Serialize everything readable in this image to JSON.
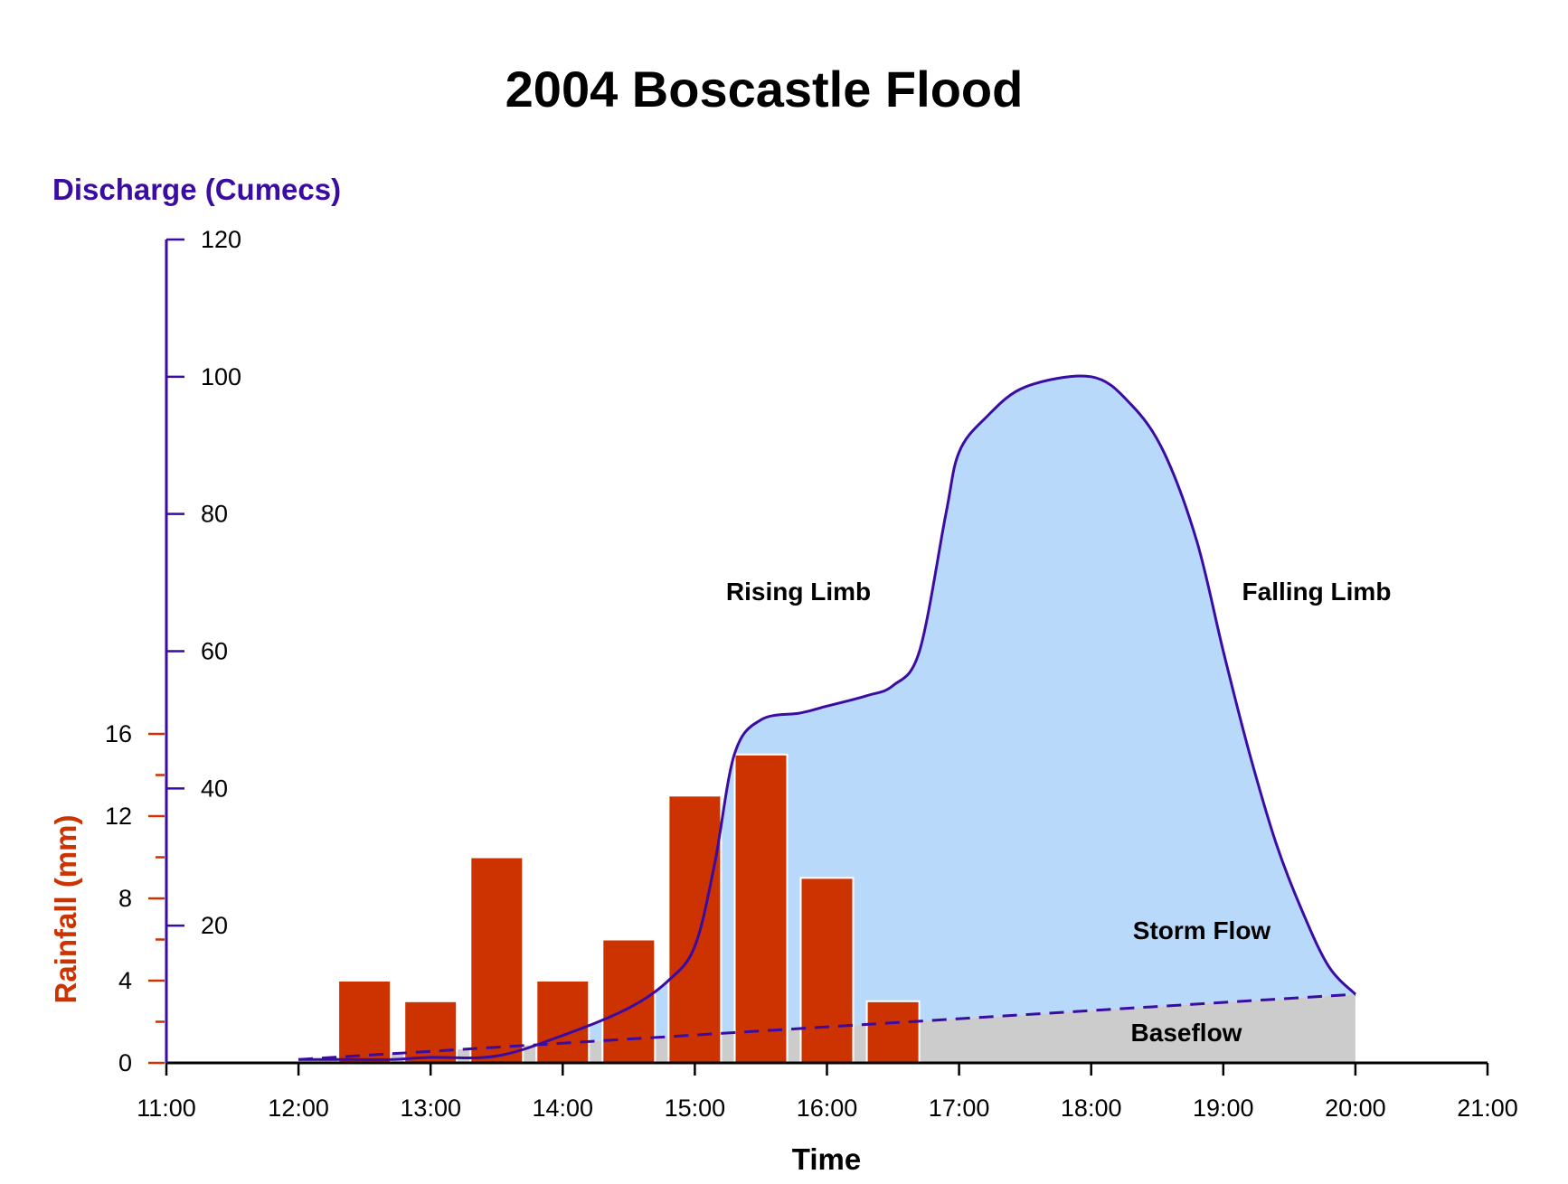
{
  "chart_data": {
    "type": "bar",
    "title": "2004 Boscastle Flood",
    "xlabel": "Time",
    "x_ticks": [
      "11:00",
      "12:00",
      "13:00",
      "14:00",
      "15:00",
      "16:00",
      "17:00",
      "18:00",
      "19:00",
      "20:00",
      "21:00"
    ],
    "xlim": [
      11,
      21
    ],
    "discharge_axis": {
      "label": "Discharge (Cumecs)",
      "ylim": [
        0,
        120
      ],
      "ticks": [
        20,
        40,
        60,
        80,
        100,
        120
      ],
      "color": "#3a0ca3"
    },
    "rainfall_axis": {
      "label": "Rainfall (mm)",
      "ylim": [
        0,
        16
      ],
      "ticks": [
        0,
        4,
        8,
        12,
        16
      ],
      "color": "#cc3300"
    },
    "rainfall": {
      "x": [
        12.5,
        13.0,
        13.5,
        14.0,
        14.5,
        15.0,
        15.5,
        16.0,
        16.5
      ],
      "values": [
        4,
        3,
        10,
        4,
        6,
        13,
        15,
        9,
        3
      ],
      "color": "#cc3300"
    },
    "discharge": {
      "x": [
        12.0,
        12.3,
        12.7,
        13.0,
        13.5,
        14.0,
        14.5,
        14.8,
        15.0,
        15.15,
        15.3,
        15.5,
        15.8,
        16.0,
        16.3,
        16.5,
        16.7,
        16.9,
        17.0,
        17.2,
        17.5,
        18.0,
        18.3,
        18.55,
        18.8,
        19.0,
        19.2,
        19.4,
        19.6,
        19.8,
        20.0
      ],
      "values": [
        0.5,
        0.5,
        0.5,
        0.8,
        1.0,
        4.0,
        8.0,
        12.0,
        17.0,
        29.0,
        45.0,
        50.0,
        51.0,
        52.0,
        53.5,
        55.0,
        60.0,
        80.0,
        89.0,
        94.0,
        98.5,
        100.0,
        96.0,
        89.0,
        76.0,
        60.0,
        45.0,
        32.0,
        22.0,
        14.0,
        10.0
      ],
      "color": "#3a0ca3"
    },
    "baseflow": {
      "x": [
        12.0,
        20.0
      ],
      "values": [
        0.5,
        10.0
      ]
    },
    "colors": {
      "storm_flow": "#b9d9fb",
      "baseflow": "#cccccc",
      "bar_stroke": "#ffffff"
    },
    "annotations": {
      "rising_limb": "Rising Limb",
      "falling_limb": "Falling Limb",
      "storm_flow": "Storm Flow",
      "baseflow": "Baseflow"
    },
    "grid": false,
    "legend": "none"
  }
}
